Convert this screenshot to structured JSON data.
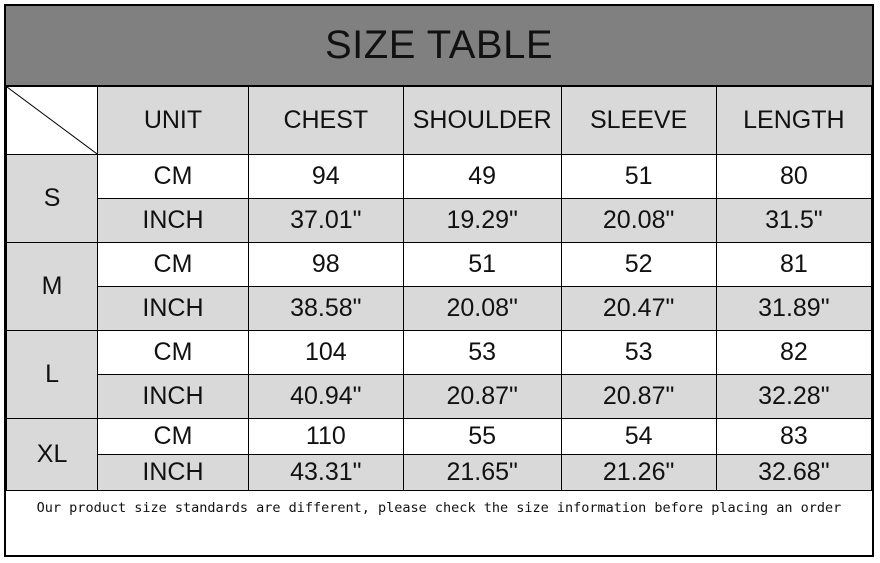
{
  "title": "SIZE TABLE",
  "headers": [
    "UNIT",
    "CHEST",
    "SHOULDER",
    "SLEEVE",
    "LENGTH"
  ],
  "sizes": [
    {
      "size": "S",
      "rows": [
        {
          "unit": "CM",
          "values": [
            "94",
            "49",
            "51",
            "80"
          ]
        },
        {
          "unit": "INCH",
          "values": [
            "37.01\"",
            "19.29\"",
            "20.08\"",
            "31.5\""
          ]
        }
      ]
    },
    {
      "size": "M",
      "rows": [
        {
          "unit": "CM",
          "values": [
            "98",
            "51",
            "52",
            "81"
          ]
        },
        {
          "unit": "INCH",
          "values": [
            "38.58\"",
            "20.08\"",
            "20.47\"",
            "31.89\""
          ]
        }
      ]
    },
    {
      "size": "L",
      "rows": [
        {
          "unit": "CM",
          "values": [
            "104",
            "53",
            "53",
            "82"
          ]
        },
        {
          "unit": "INCH",
          "values": [
            "40.94\"",
            "20.87\"",
            "20.87\"",
            "32.28\""
          ]
        }
      ]
    },
    {
      "size": "XL",
      "rows": [
        {
          "unit": "CM",
          "values": [
            "110",
            "55",
            "54",
            "83"
          ]
        },
        {
          "unit": "INCH",
          "values": [
            "43.31\"",
            "21.65\"",
            "21.26\"",
            "32.68\""
          ]
        }
      ]
    }
  ],
  "note": "Our product size standards are different, please check the size information before placing an order",
  "colors": {
    "title_bg": "#808080",
    "cell_gray": "#d9d9d9"
  }
}
